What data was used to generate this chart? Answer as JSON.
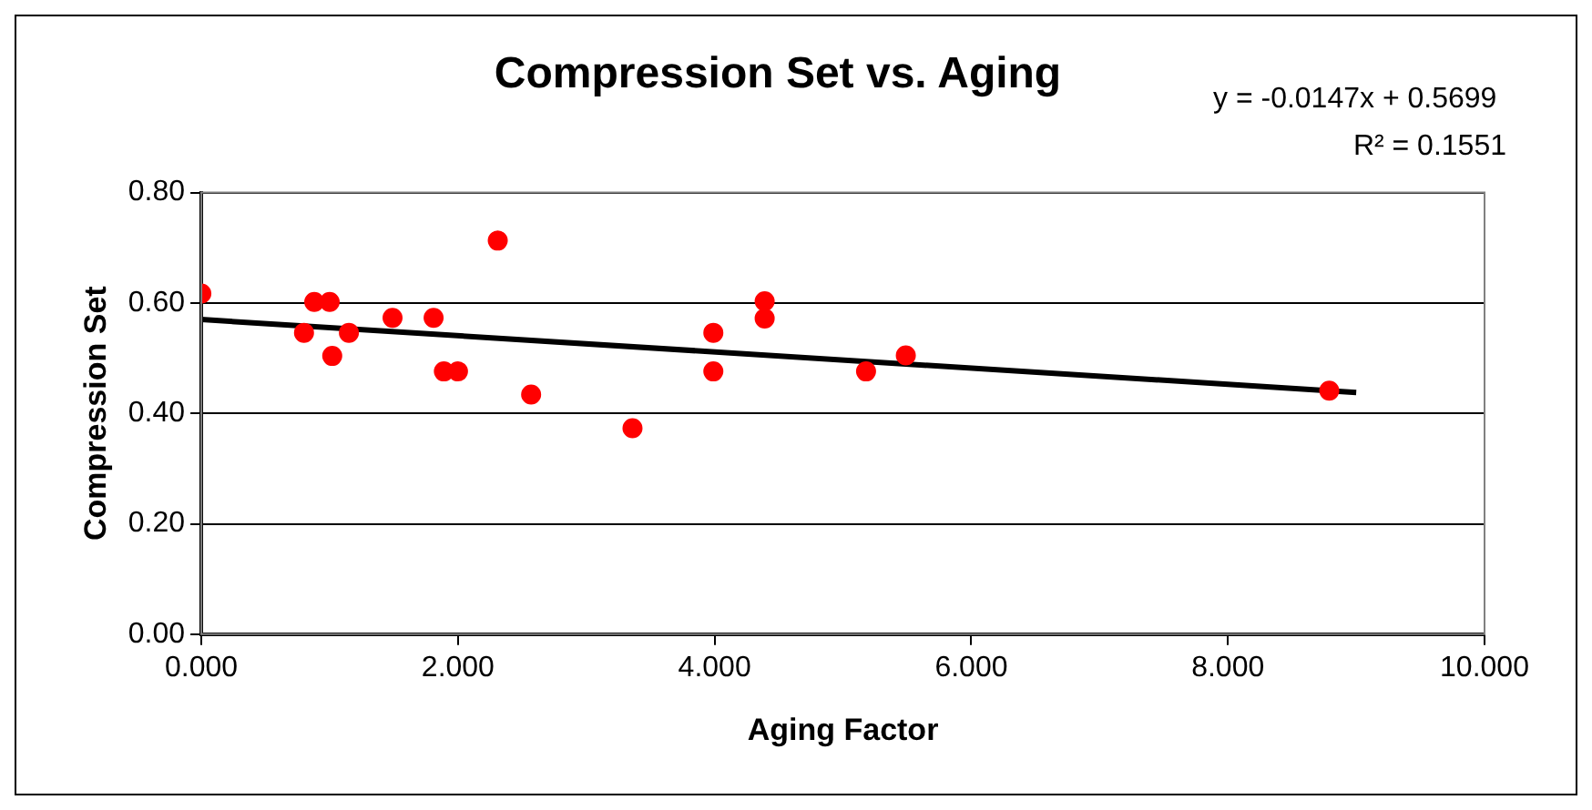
{
  "chart_data": {
    "type": "scatter",
    "title": "Compression Set vs. Aging",
    "xlabel": "Aging Factor",
    "ylabel": "Compression Set",
    "annotations": [
      "y = -0.0147x + 0.5699",
      "R² = 0.1551"
    ],
    "series": [
      {
        "color": "#ff0000",
        "marker": "circle",
        "x": [
          0.0,
          0.8,
          0.88,
          1.0,
          1.02,
          1.15,
          1.49,
          1.81,
          1.89,
          2.0,
          2.31,
          2.57,
          3.36,
          3.99,
          3.99,
          4.39,
          4.39,
          5.18,
          5.49,
          8.79
        ],
        "values": [
          0.617,
          0.546,
          0.602,
          0.602,
          0.504,
          0.546,
          0.573,
          0.573,
          0.476,
          0.476,
          0.713,
          0.434,
          0.373,
          0.546,
          0.476,
          0.603,
          0.572,
          0.476,
          0.505,
          0.441
        ]
      },
      {
        "type": "line",
        "color": "#000000",
        "marker": "none",
        "x": [
          0,
          9
        ],
        "values": [
          0.57,
          0.438
        ]
      }
    ],
    "xlim": [
      0,
      10
    ],
    "xticks": [
      {
        "value": 0,
        "label": "0.000"
      },
      {
        "value": 2,
        "label": "2.000"
      },
      {
        "value": 4,
        "label": "4.000"
      },
      {
        "value": 6,
        "label": "6.000"
      },
      {
        "value": 8,
        "label": "8.000"
      },
      {
        "value": 10,
        "label": "10.000"
      }
    ],
    "ylim": [
      0,
      0.8
    ],
    "yticks": [
      {
        "value": 0,
        "label": "0.00"
      },
      {
        "value": 0.2,
        "label": "0.20"
      },
      {
        "value": 0.4,
        "label": "0.40"
      },
      {
        "value": 0.6,
        "label": "0.60"
      },
      {
        "value": 0.8,
        "label": "0.80"
      }
    ],
    "grid": "y",
    "legend": false
  }
}
